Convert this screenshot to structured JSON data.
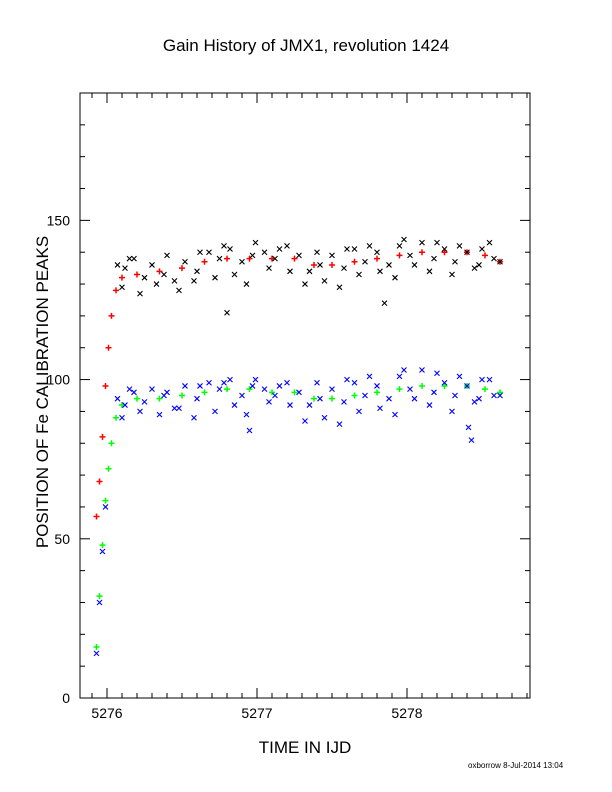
{
  "chart_data": {
    "type": "scatter",
    "title": "Gain History of JMX1, revolution 1424",
    "xlabel": "TIME IN IJD",
    "ylabel": "POSITION OF Fe CALIBRATION PEAKS",
    "xlim": [
      5275.82,
      5278.82
    ],
    "ylim": [
      0,
      190
    ],
    "xticks": [
      5276,
      5277,
      5278
    ],
    "yticks": [
      0,
      50,
      100,
      150
    ],
    "grid": false,
    "credit": "oxborrow  8-Jul-2014 13:04",
    "series": [
      {
        "marker": "plus",
        "color": "#ff0000",
        "x": [
          5275.93,
          5275.95,
          5275.97,
          5275.99,
          5276.01,
          5276.03,
          5276.06,
          5276.1,
          5276.2,
          5276.35,
          5276.5,
          5276.65,
          5276.8,
          5276.95,
          5277.1,
          5277.25,
          5277.38,
          5277.5,
          5277.65,
          5277.8,
          5277.95,
          5278.1,
          5278.25,
          5278.4,
          5278.52,
          5278.62
        ],
        "y": [
          57,
          68,
          82,
          98,
          110,
          120,
          128,
          132,
          133,
          134,
          135,
          137,
          138,
          138,
          138,
          138,
          136,
          136,
          137,
          138,
          139,
          140,
          140,
          140,
          139,
          137
        ]
      },
      {
        "marker": "plus",
        "color": "#00ff00",
        "x": [
          5275.93,
          5275.95,
          5275.97,
          5275.99,
          5276.01,
          5276.03,
          5276.06,
          5276.1,
          5276.2,
          5276.35,
          5276.5,
          5276.65,
          5276.8,
          5276.95,
          5277.1,
          5277.25,
          5277.38,
          5277.5,
          5277.65,
          5277.8,
          5277.95,
          5278.1,
          5278.25,
          5278.4,
          5278.52,
          5278.62
        ],
        "y": [
          16,
          32,
          48,
          62,
          72,
          80,
          88,
          92,
          94,
          94,
          95,
          96,
          97,
          97,
          96,
          96,
          94,
          94,
          95,
          96,
          97,
          98,
          98,
          98,
          97,
          96
        ]
      },
      {
        "marker": "cross",
        "color": "#000000",
        "x": [
          5276.07,
          5276.12,
          5276.18,
          5276.25,
          5276.3,
          5276.38,
          5276.45,
          5276.52,
          5276.6,
          5276.68,
          5276.75,
          5276.82,
          5276.9,
          5276.97,
          5277.05,
          5277.12,
          5277.2,
          5277.28,
          5277.35,
          5277.42,
          5277.5,
          5277.58,
          5277.65,
          5277.72,
          5277.8,
          5277.88,
          5277.95,
          5278.02,
          5278.1,
          5278.18,
          5278.25,
          5278.32,
          5278.4,
          5278.48,
          5278.55,
          5278.62,
          5276.1,
          5276.22,
          5276.33,
          5276.48,
          5276.58,
          5276.72,
          5276.85,
          5276.93,
          5277.08,
          5277.22,
          5277.32,
          5277.45,
          5277.55,
          5277.68,
          5277.82,
          5277.92,
          5278.05,
          5278.15,
          5278.3,
          5278.45,
          5278.58,
          5276.15,
          5276.4,
          5276.62,
          5276.78,
          5276.99,
          5277.15,
          5277.4,
          5277.6,
          5277.75,
          5277.98,
          5278.2,
          5278.35,
          5278.5,
          5276.8,
          5277.85
        ],
        "y": [
          136,
          135,
          138,
          132,
          136,
          133,
          131,
          137,
          134,
          140,
          138,
          141,
          137,
          139,
          140,
          138,
          142,
          139,
          134,
          136,
          139,
          135,
          141,
          137,
          140,
          136,
          142,
          139,
          143,
          138,
          141,
          137,
          140,
          136,
          143,
          137,
          129,
          127,
          130,
          128,
          131,
          132,
          133,
          130,
          135,
          134,
          130,
          131,
          129,
          133,
          134,
          132,
          136,
          134,
          133,
          135,
          138,
          138,
          139,
          140,
          142,
          143,
          141,
          140,
          141,
          142,
          144,
          143,
          142,
          141,
          121,
          124
        ]
      },
      {
        "marker": "cross",
        "color": "#0000ff",
        "x": [
          5275.93,
          5275.95,
          5275.97,
          5275.99,
          5276.07,
          5276.12,
          5276.18,
          5276.25,
          5276.3,
          5276.38,
          5276.45,
          5276.52,
          5276.6,
          5276.68,
          5276.75,
          5276.82,
          5276.9,
          5276.97,
          5277.05,
          5277.12,
          5277.2,
          5277.28,
          5277.35,
          5277.42,
          5277.5,
          5277.58,
          5277.65,
          5277.72,
          5277.8,
          5277.88,
          5277.95,
          5278.02,
          5278.1,
          5278.18,
          5278.25,
          5278.32,
          5278.4,
          5278.48,
          5278.55,
          5278.62,
          5276.1,
          5276.22,
          5276.35,
          5276.48,
          5276.58,
          5276.72,
          5276.85,
          5276.93,
          5277.08,
          5277.22,
          5277.32,
          5277.45,
          5277.55,
          5277.68,
          5277.82,
          5277.92,
          5278.05,
          5278.15,
          5278.3,
          5278.45,
          5278.58,
          5276.15,
          5276.4,
          5276.62,
          5276.78,
          5276.99,
          5277.15,
          5277.4,
          5277.6,
          5277.75,
          5277.98,
          5278.2,
          5278.35,
          5278.5,
          5276.95,
          5278.41,
          5278.43
        ],
        "y": [
          14,
          30,
          46,
          60,
          94,
          92,
          96,
          93,
          97,
          95,
          91,
          98,
          94,
          99,
          97,
          100,
          95,
          98,
          97,
          95,
          99,
          96,
          92,
          94,
          97,
          93,
          99,
          95,
          98,
          94,
          101,
          97,
          103,
          96,
          99,
          95,
          98,
          94,
          100,
          95,
          88,
          90,
          89,
          91,
          88,
          90,
          92,
          89,
          93,
          92,
          87,
          88,
          86,
          90,
          91,
          89,
          94,
          92,
          90,
          93,
          95,
          97,
          96,
          98,
          99,
          100,
          98,
          99,
          100,
          101,
          103,
          102,
          101,
          100,
          84,
          85,
          81
        ]
      }
    ]
  }
}
